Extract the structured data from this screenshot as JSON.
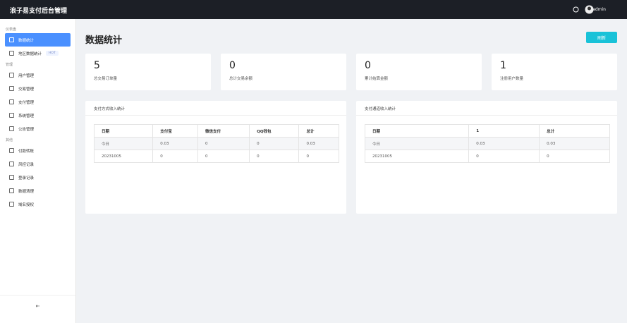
{
  "header": {
    "title": "浪子易支付后台管理",
    "user": "admin"
  },
  "sidebar": {
    "sections": [
      {
        "label": "仪表盘",
        "items": [
          {
            "label": "数据统计"
          },
          {
            "label": "地区数据统计",
            "badge": "HOT"
          }
        ]
      },
      {
        "label": "管理",
        "items": [
          {
            "label": "用户管理"
          },
          {
            "label": "交易管理"
          },
          {
            "label": "支付管理"
          },
          {
            "label": "系统管理"
          },
          {
            "label": "公告管理"
          }
        ]
      },
      {
        "label": "其他",
        "items": [
          {
            "label": "付款转账"
          },
          {
            "label": "风控记录"
          },
          {
            "label": "登录记录"
          },
          {
            "label": "数据清理"
          },
          {
            "label": "域名授权"
          }
        ]
      }
    ]
  },
  "main": {
    "title": "数据统计",
    "refresh_button": "刷新",
    "stats": [
      {
        "value": "5",
        "label": "总交易订单量"
      },
      {
        "value": "0",
        "label": "总计交易余额"
      },
      {
        "value": "0",
        "label": "累计结算金额"
      },
      {
        "value": "1",
        "label": "注册用户数量"
      }
    ],
    "panels": [
      {
        "title": "支付方式收入统计",
        "columns": [
          "日期",
          "支付宝",
          "微信支付",
          "QQ钱包",
          "总计"
        ],
        "rows": [
          [
            "今日",
            "0.03",
            "0",
            "0",
            "0.03"
          ],
          [
            "20231005",
            "0",
            "0",
            "0",
            "0"
          ]
        ]
      },
      {
        "title": "支付通道收入统计",
        "columns": [
          "日期",
          "1",
          "总计"
        ],
        "rows": [
          [
            "今日",
            "0.03",
            "0.03"
          ],
          [
            "20231005",
            "0",
            "0"
          ]
        ]
      }
    ]
  }
}
